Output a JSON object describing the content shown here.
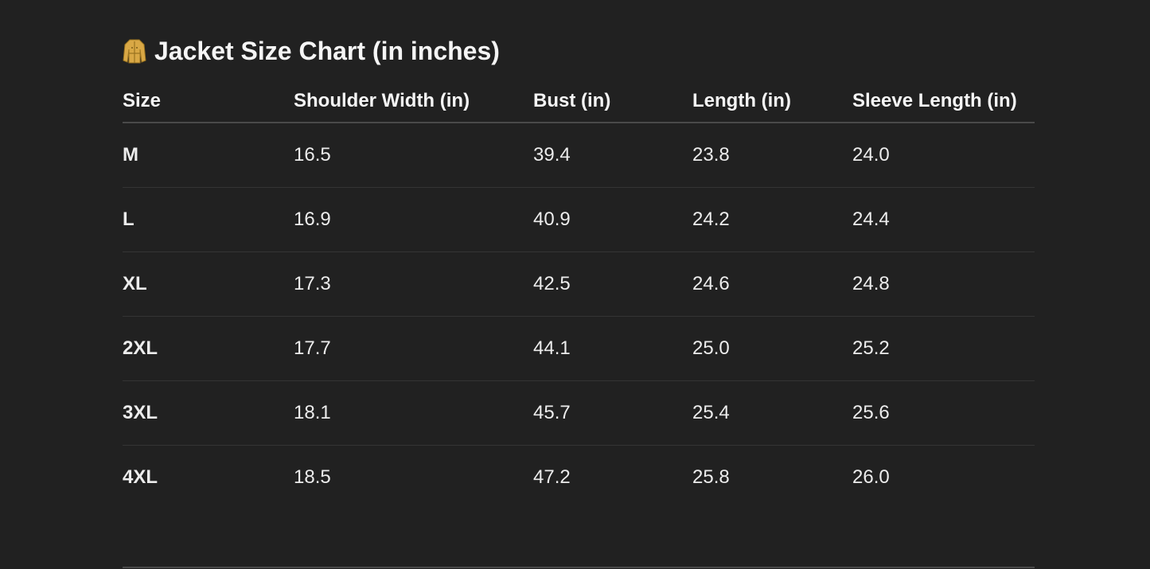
{
  "title": {
    "icon": "coat-icon",
    "text": "Jacket Size Chart (in inches)"
  },
  "table": {
    "headers": [
      "Size",
      "Shoulder Width (in)",
      "Bust (in)",
      "Length (in)",
      "Sleeve Length (in)"
    ],
    "rows": [
      [
        "M",
        "16.5",
        "39.4",
        "23.8",
        "24.0"
      ],
      [
        "L",
        "16.9",
        "40.9",
        "24.2",
        "24.4"
      ],
      [
        "XL",
        "17.3",
        "42.5",
        "24.6",
        "24.8"
      ],
      [
        "2XL",
        "17.7",
        "44.1",
        "25.0",
        "25.2"
      ],
      [
        "3XL",
        "18.1",
        "45.7",
        "25.4",
        "25.6"
      ],
      [
        "4XL",
        "18.5",
        "47.2",
        "25.8",
        "26.0"
      ]
    ]
  },
  "colors": {
    "background": "#212121",
    "text": "#f2f2f2",
    "divider": "#343434",
    "icon": "#d9a845"
  }
}
